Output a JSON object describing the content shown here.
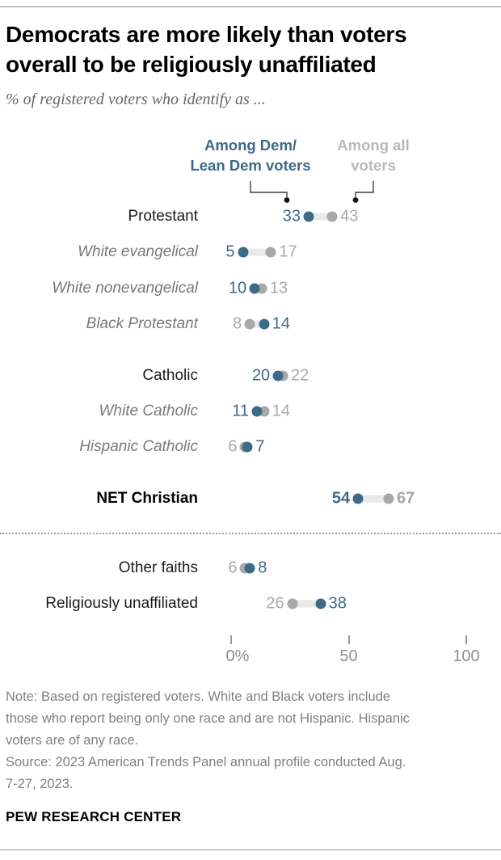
{
  "header": {
    "title_line1": "Democrats are more likely than voters",
    "title_line2": "overall to be religiously unaffiliated",
    "subtitle": "% of registered voters who identify as ..."
  },
  "legend": {
    "dem": {
      "line1": "Among Dem/",
      "line2": "Lean Dem voters"
    },
    "all": {
      "line1": "Among all",
      "line2": "voters"
    }
  },
  "chart_data": {
    "type": "dumbbell-dot-plot",
    "title": "Democrats are more likely than voters overall to be religiously unaffiliated",
    "subtitle": "% of registered voters who identify as ...",
    "axis": {
      "range": [
        0,
        100
      ],
      "ticks": [
        {
          "value": 0,
          "label": "0%"
        },
        {
          "value": 50,
          "label": "50"
        },
        {
          "value": 100,
          "label": "100"
        }
      ]
    },
    "series": [
      {
        "name": "Among Dem/Lean Dem voters",
        "color": "#3d6b87"
      },
      {
        "name": "Among all voters",
        "color": "#a8a8a8"
      }
    ],
    "rows": [
      {
        "label": "Protestant",
        "dem": 33,
        "all": 43,
        "style": "parent"
      },
      {
        "label": "White evangelical",
        "dem": 5,
        "all": 17,
        "style": "sub"
      },
      {
        "label": "White nonevangelical",
        "dem": 10,
        "all": 13,
        "style": "sub"
      },
      {
        "label": "Black Protestant",
        "dem": 14,
        "all": 8,
        "style": "sub"
      },
      {
        "label": "Catholic",
        "dem": 20,
        "all": 22,
        "style": "parent"
      },
      {
        "label": "White Catholic",
        "dem": 11,
        "all": 14,
        "style": "sub"
      },
      {
        "label": "Hispanic Catholic",
        "dem": 7,
        "all": 6,
        "style": "sub"
      },
      {
        "label": "NET Christian",
        "dem": 54,
        "all": 67,
        "style": "net"
      },
      {
        "label": "Other faiths",
        "dem": 8,
        "all": 6,
        "style": "parent"
      },
      {
        "label": "Religiously unaffiliated",
        "dem": 38,
        "all": 26,
        "style": "parent"
      }
    ]
  },
  "colors": {
    "dem_blue": "#3d6b87",
    "all_gray": "#a8a8a8",
    "bar_gray": "#e9e9e9",
    "callout_black": "#111111"
  },
  "footer": {
    "note_lines": [
      "Note: Based on registered voters. White and Black voters include",
      "those who report being only one race and are not Hispanic. Hispanic",
      "voters are of any race."
    ],
    "source_lines": [
      "Source: 2023 American Trends Panel annual profile conducted Aug.",
      "7-27, 2023."
    ],
    "brand": "PEW RESEARCH CENTER"
  }
}
